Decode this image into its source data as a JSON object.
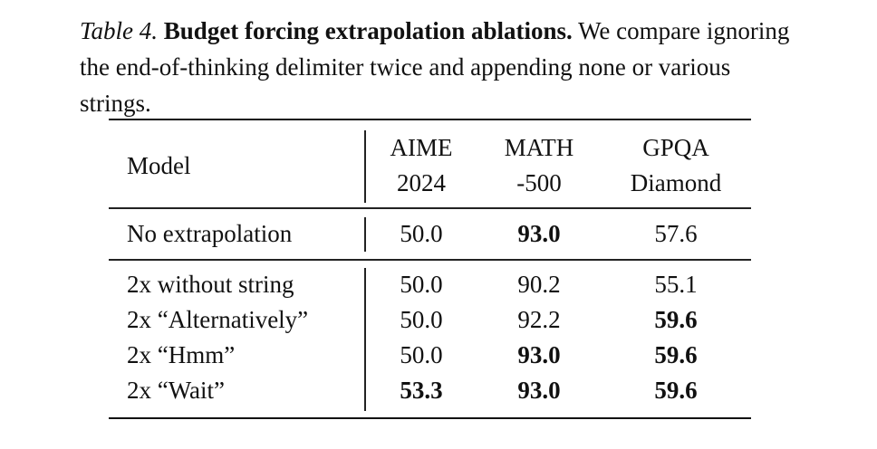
{
  "caption": {
    "label": "Table 4.",
    "title": "Budget forcing extrapolation ablations.",
    "body": "We compare ignoring the end-of-thinking delimiter twice and appending none or various strings."
  },
  "table": {
    "header": {
      "model": "Model",
      "col1_line1": "AIME",
      "col1_line2": "2024",
      "col2_line1": "MATH",
      "col2_line2": "-500",
      "col3_line1": "GPQA",
      "col3_line2": "Diamond"
    },
    "rows": [
      {
        "model": "No extrapolation",
        "aime": "50.0",
        "math": "93.0",
        "gpqa": "57.6"
      },
      {
        "model": "2x without string",
        "aime": "50.0",
        "math": "90.2",
        "gpqa": "55.1"
      },
      {
        "model": "2x “Alternatively”",
        "aime": "50.0",
        "math": "92.2",
        "gpqa": "59.6"
      },
      {
        "model": "2x “Hmm”",
        "aime": "50.0",
        "math": "93.0",
        "gpqa": "59.6"
      },
      {
        "model": "2x “Wait”",
        "aime": "53.3",
        "math": "93.0",
        "gpqa": "59.6"
      }
    ]
  }
}
